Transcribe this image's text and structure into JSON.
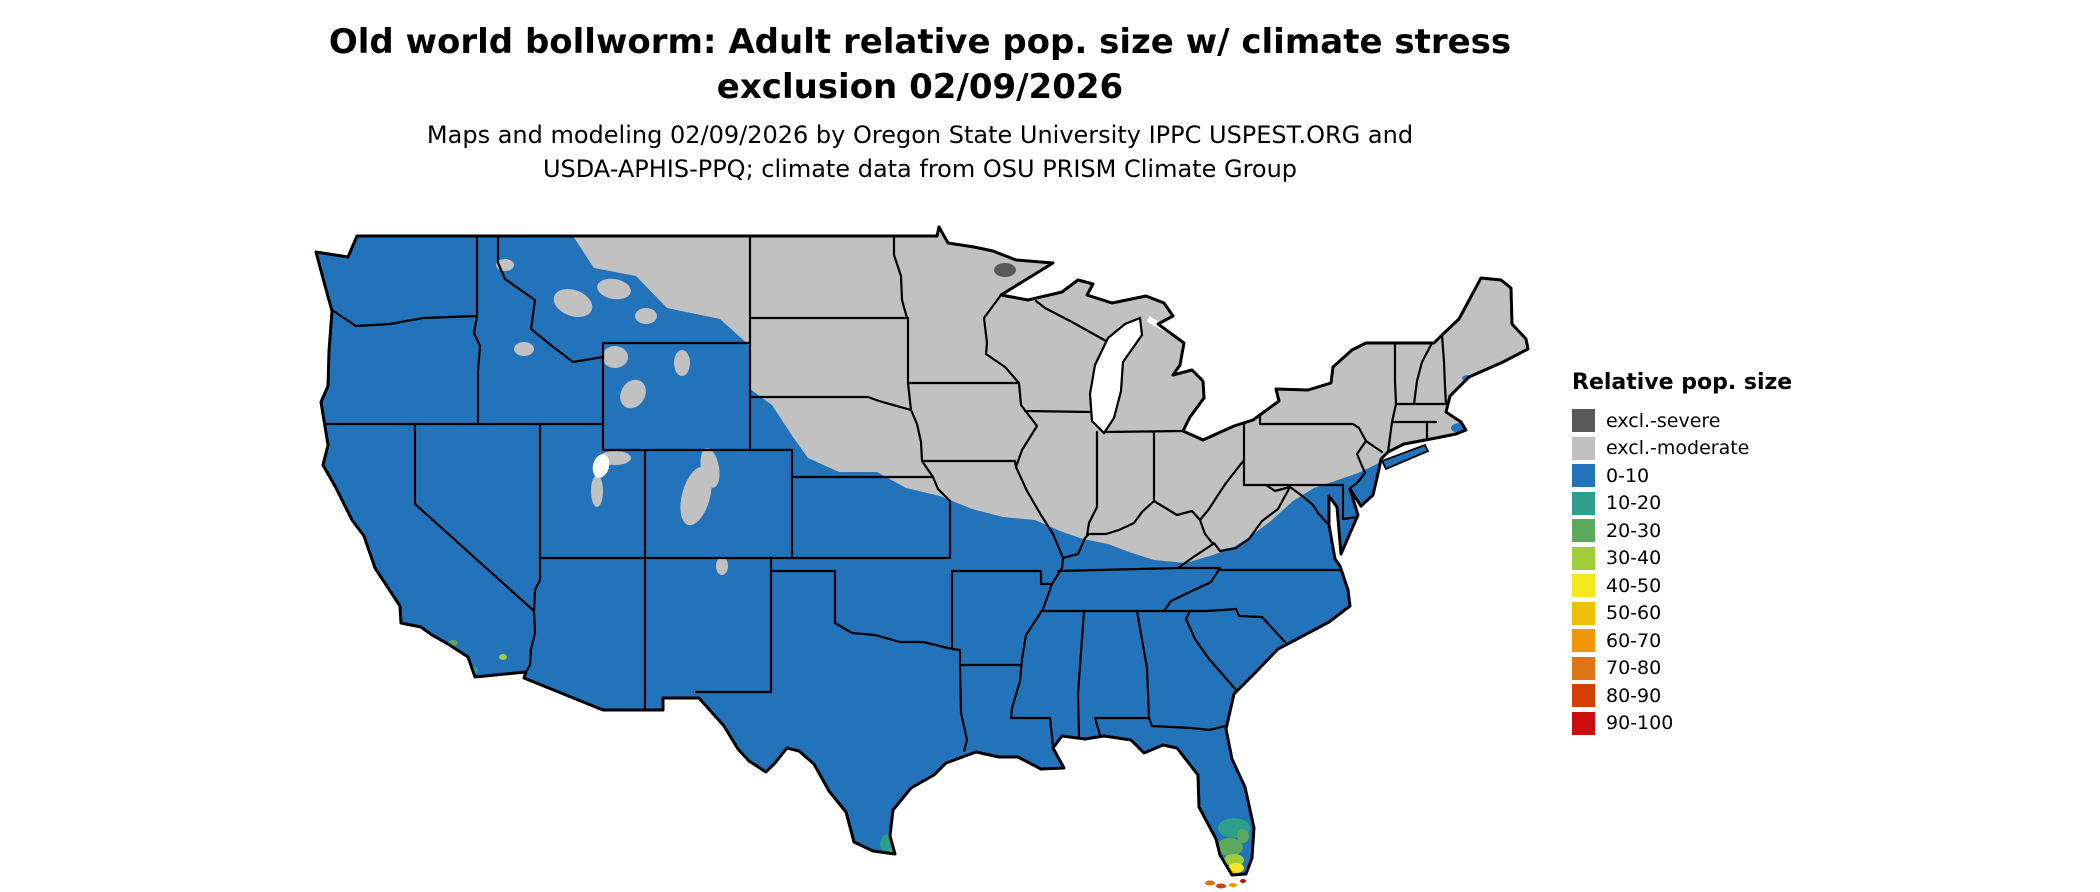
{
  "title": {
    "line1": "Old world bollworm: Adult relative pop. size w/ climate stress",
    "line2": "exclusion 02/09/2026"
  },
  "subtitle": {
    "line1": "Maps and modeling 02/09/2026 by Oregon State University IPPC USPEST.ORG and",
    "line2": "USDA-APHIS-PPQ; climate data from OSU PRISM Climate Group"
  },
  "legend": {
    "title": "Relative pop. size",
    "entries": [
      {
        "label": "excl.-severe",
        "color": "#595959"
      },
      {
        "label": "excl.-moderate",
        "color": "#C1C1C1"
      },
      {
        "label": "0-10",
        "color": "#2373BA"
      },
      {
        "label": "10-20",
        "color": "#2D9F8A"
      },
      {
        "label": "20-30",
        "color": "#5CA85C"
      },
      {
        "label": "30-40",
        "color": "#A2CD3A"
      },
      {
        "label": "40-50",
        "color": "#F2EA1F"
      },
      {
        "label": "50-60",
        "color": "#EFC000"
      },
      {
        "label": "60-70",
        "color": "#F09800"
      },
      {
        "label": "70-80",
        "color": "#DE7418"
      },
      {
        "label": "80-90",
        "color": "#D24008"
      },
      {
        "label": "90-100",
        "color": "#CB0D0D"
      }
    ]
  },
  "colors": {
    "background": "#FFFFFF",
    "water": "#FFFFFF",
    "map_border": "#000000",
    "excl_severe": "#595959",
    "excl_moderate": "#C1C1C1",
    "fill_0_10": "#2373BA",
    "fill_10_20": "#2D9F8A",
    "fill_20_30": "#5CA85C",
    "fill_30_40": "#A2CD3A",
    "fill_40_50": "#F2EA1F",
    "fill_50_60": "#EFC000",
    "fill_60_70": "#F09800",
    "fill_70_80": "#DE7418",
    "fill_80_90": "#D24008",
    "fill_90_100": "#CB0D0D"
  }
}
